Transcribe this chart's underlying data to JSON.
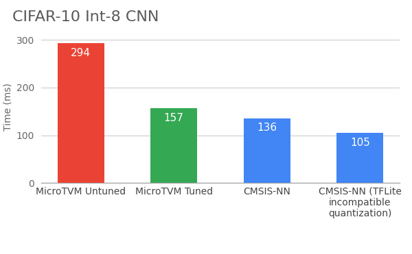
{
  "title": "CIFAR-10 Int-8 CNN",
  "categories": [
    "MicroTVM Untuned",
    "MicroTVM Tuned",
    "CMSIS-NN",
    "CMSIS-NN (TFLite\nincompatible\nquantization)"
  ],
  "values": [
    294,
    157,
    136,
    105
  ],
  "bar_colors": [
    "#ea4335",
    "#34a853",
    "#4285f4",
    "#4285f4"
  ],
  "ylabel": "Time (ms)",
  "ylim": [
    0,
    320
  ],
  "yticks": [
    0,
    100,
    200,
    300
  ],
  "background_color": "#ffffff",
  "label_color": "#ffffff",
  "title_color": "#5a5a5a",
  "title_fontsize": 16,
  "label_fontsize": 11,
  "ylabel_fontsize": 10,
  "tick_fontsize": 10,
  "bar_width": 0.5,
  "grid_color": "#cccccc"
}
